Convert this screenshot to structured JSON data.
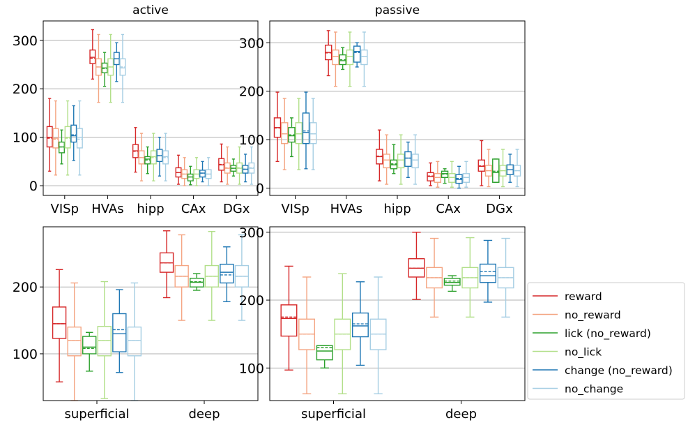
{
  "figure": {
    "legend": [
      {
        "key": "reward",
        "label": "reward",
        "color": "#d62728"
      },
      {
        "key": "no_reward",
        "label": "no_reward",
        "color": "#f4a582"
      },
      {
        "key": "lick",
        "label": "lick (no_reward)",
        "color": "#2ca02c"
      },
      {
        "key": "no_lick",
        "label": "no_lick",
        "color": "#b2df8a"
      },
      {
        "key": "change",
        "label": "change (no_reward)",
        "color": "#1f77b4"
      },
      {
        "key": "no_change",
        "label": "no_change",
        "color": "#a6cee3"
      }
    ]
  },
  "chart_data": [
    {
      "type": "box",
      "title": "active",
      "categories": [
        "VISp",
        "HVAs",
        "hipp",
        "CAx",
        "DGx"
      ],
      "ylim": [
        -20,
        340
      ],
      "yticks": [
        0,
        100,
        200,
        300
      ],
      "grid": "y",
      "series": [
        {
          "name": "reward",
          "boxes": [
            {
              "whislo": 30,
              "q1": 80,
              "med": 100,
              "mean": 98,
              "q3": 122,
              "whishi": 180
            },
            {
              "whislo": 220,
              "q1": 252,
              "med": 265,
              "mean": 263,
              "q3": 280,
              "whishi": 322
            },
            {
              "whislo": 28,
              "q1": 58,
              "med": 72,
              "mean": 71,
              "q3": 85,
              "whishi": 120
            },
            {
              "whislo": 3,
              "q1": 18,
              "med": 27,
              "mean": 27,
              "q3": 37,
              "whishi": 63
            },
            {
              "whislo": 8,
              "q1": 32,
              "med": 43,
              "mean": 44,
              "q3": 56,
              "whishi": 86
            }
          ]
        },
        {
          "name": "no_reward",
          "boxes": [
            {
              "whislo": 22,
              "q1": 78,
              "med": 98,
              "mean": 96,
              "q3": 118,
              "whishi": 175
            },
            {
              "whislo": 172,
              "q1": 228,
              "med": 245,
              "mean": 245,
              "q3": 262,
              "whishi": 312
            },
            {
              "whislo": 10,
              "q1": 45,
              "med": 58,
              "mean": 58,
              "q3": 72,
              "whishi": 108
            },
            {
              "whislo": 0,
              "q1": 15,
              "med": 24,
              "mean": 24,
              "q3": 33,
              "whishi": 58
            },
            {
              "whislo": 3,
              "q1": 26,
              "med": 36,
              "mean": 37,
              "q3": 47,
              "whishi": 80
            }
          ]
        },
        {
          "name": "lick (no_reward)",
          "boxes": [
            {
              "whislo": 45,
              "q1": 68,
              "med": 80,
              "mean": 80,
              "q3": 90,
              "whishi": 115
            },
            {
              "whislo": 205,
              "q1": 233,
              "med": 243,
              "mean": 242,
              "q3": 253,
              "whishi": 275
            },
            {
              "whislo": 25,
              "q1": 45,
              "med": 55,
              "mean": 53,
              "q3": 60,
              "whishi": 80
            },
            {
              "whislo": 2,
              "q1": 10,
              "med": 18,
              "mean": 18,
              "q3": 24,
              "whishi": 40
            },
            {
              "whislo": 20,
              "q1": 30,
              "med": 36,
              "mean": 36,
              "q3": 42,
              "whishi": 55
            }
          ]
        },
        {
          "name": "no_lick",
          "boxes": [
            {
              "whislo": 22,
              "q1": 78,
              "med": 100,
              "mean": 98,
              "q3": 122,
              "whishi": 175
            },
            {
              "whislo": 172,
              "q1": 228,
              "med": 245,
              "mean": 245,
              "q3": 262,
              "whishi": 312
            },
            {
              "whislo": 10,
              "q1": 45,
              "med": 60,
              "mean": 58,
              "q3": 72,
              "whishi": 108
            },
            {
              "whislo": 0,
              "q1": 15,
              "med": 24,
              "mean": 24,
              "q3": 33,
              "whishi": 58
            },
            {
              "whislo": 3,
              "q1": 26,
              "med": 36,
              "mean": 37,
              "q3": 47,
              "whishi": 80
            }
          ]
        },
        {
          "name": "change (no_reward)",
          "boxes": [
            {
              "whislo": 52,
              "q1": 90,
              "med": 103,
              "mean": 105,
              "q3": 125,
              "whishi": 165
            },
            {
              "whislo": 215,
              "q1": 250,
              "med": 262,
              "mean": 262,
              "q3": 275,
              "whishi": 295
            },
            {
              "whislo": 20,
              "q1": 50,
              "med": 62,
              "mean": 62,
              "q3": 75,
              "whishi": 100
            },
            {
              "whislo": 8,
              "q1": 18,
              "med": 26,
              "mean": 26,
              "q3": 32,
              "whishi": 50
            },
            {
              "whislo": 8,
              "q1": 26,
              "med": 34,
              "mean": 34,
              "q3": 42,
              "whishi": 65
            }
          ]
        },
        {
          "name": "no_change",
          "boxes": [
            {
              "whislo": 22,
              "q1": 78,
              "med": 100,
              "mean": 96,
              "q3": 118,
              "whishi": 175
            },
            {
              "whislo": 172,
              "q1": 228,
              "med": 243,
              "mean": 245,
              "q3": 262,
              "whishi": 312
            },
            {
              "whislo": 10,
              "q1": 45,
              "med": 60,
              "mean": 58,
              "q3": 72,
              "whishi": 108
            },
            {
              "whislo": 0,
              "q1": 15,
              "med": 24,
              "mean": 24,
              "q3": 33,
              "whishi": 58
            },
            {
              "whislo": 3,
              "q1": 26,
              "med": 36,
              "mean": 37,
              "q3": 47,
              "whishi": 80
            }
          ]
        }
      ]
    },
    {
      "type": "box",
      "title": "passive",
      "categories": [
        "VISp",
        "HVAs",
        "hipp",
        "CAx",
        "DGx"
      ],
      "ylim": [
        -15,
        345
      ],
      "yticks": [
        0,
        100,
        200,
        300
      ],
      "grid": "y",
      "series": [
        {
          "name": "reward",
          "boxes": [
            {
              "whislo": 55,
              "q1": 105,
              "med": 125,
              "mean": 124,
              "q3": 145,
              "whishi": 198
            },
            {
              "whislo": 232,
              "q1": 265,
              "med": 280,
              "mean": 279,
              "q3": 295,
              "whishi": 325
            },
            {
              "whislo": 15,
              "q1": 50,
              "med": 65,
              "mean": 66,
              "q3": 80,
              "whishi": 120
            },
            {
              "whislo": 5,
              "q1": 15,
              "med": 24,
              "mean": 25,
              "q3": 32,
              "whishi": 52
            },
            {
              "whislo": 5,
              "q1": 35,
              "med": 45,
              "mean": 46,
              "q3": 58,
              "whishi": 98
            }
          ]
        },
        {
          "name": "no_reward",
          "boxes": [
            {
              "whislo": 38,
              "q1": 92,
              "med": 112,
              "mean": 112,
              "q3": 135,
              "whishi": 185
            },
            {
              "whislo": 210,
              "q1": 255,
              "med": 272,
              "mean": 272,
              "q3": 285,
              "whishi": 322
            },
            {
              "whislo": 8,
              "q1": 42,
              "med": 58,
              "mean": 58,
              "q3": 70,
              "whishi": 110
            },
            {
              "whislo": 2,
              "q1": 12,
              "med": 22,
              "mean": 22,
              "q3": 30,
              "whishi": 55
            },
            {
              "whislo": 3,
              "q1": 25,
              "med": 36,
              "mean": 36,
              "q3": 47,
              "whishi": 80
            }
          ]
        },
        {
          "name": "lick (no_reward)",
          "boxes": [
            {
              "whislo": 65,
              "q1": 95,
              "med": 108,
              "mean": 110,
              "q3": 125,
              "whishi": 145
            },
            {
              "whislo": 245,
              "q1": 255,
              "med": 263,
              "mean": 265,
              "q3": 275,
              "whishi": 290
            },
            {
              "whislo": 30,
              "q1": 40,
              "med": 48,
              "mean": 50,
              "q3": 58,
              "whishi": 90
            },
            {
              "whislo": 10,
              "q1": 22,
              "med": 30,
              "mean": 29,
              "q3": 35,
              "whishi": 40
            },
            {
              "whislo": 12,
              "q1": 12,
              "med": 32,
              "mean": 35,
              "q3": 60,
              "whishi": 60
            }
          ]
        },
        {
          "name": "no_lick",
          "boxes": [
            {
              "whislo": 38,
              "q1": 92,
              "med": 112,
              "mean": 112,
              "q3": 135,
              "whishi": 185
            },
            {
              "whislo": 210,
              "q1": 255,
              "med": 272,
              "mean": 272,
              "q3": 285,
              "whishi": 322
            },
            {
              "whislo": 8,
              "q1": 42,
              "med": 58,
              "mean": 58,
              "q3": 70,
              "whishi": 110
            },
            {
              "whislo": 2,
              "q1": 12,
              "med": 22,
              "mean": 22,
              "q3": 30,
              "whishi": 55
            },
            {
              "whislo": 3,
              "q1": 25,
              "med": 36,
              "mean": 36,
              "q3": 47,
              "whishi": 80
            }
          ]
        },
        {
          "name": "change (no_reward)",
          "boxes": [
            {
              "whislo": 40,
              "q1": 92,
              "med": 115,
              "mean": 118,
              "q3": 155,
              "whishi": 198
            },
            {
              "whislo": 250,
              "q1": 260,
              "med": 282,
              "mean": 280,
              "q3": 293,
              "whishi": 300
            },
            {
              "whislo": 22,
              "q1": 45,
              "med": 62,
              "mean": 62,
              "q3": 75,
              "whishi": 95
            },
            {
              "whislo": 0,
              "q1": 10,
              "med": 18,
              "mean": 20,
              "q3": 28,
              "whishi": 45
            },
            {
              "whislo": 12,
              "q1": 28,
              "med": 38,
              "mean": 38,
              "q3": 48,
              "whishi": 70
            }
          ]
        },
        {
          "name": "no_change",
          "boxes": [
            {
              "whislo": 38,
              "q1": 92,
              "med": 112,
              "mean": 112,
              "q3": 135,
              "whishi": 185
            },
            {
              "whislo": 210,
              "q1": 255,
              "med": 272,
              "mean": 272,
              "q3": 285,
              "whishi": 322
            },
            {
              "whislo": 8,
              "q1": 42,
              "med": 58,
              "mean": 58,
              "q3": 70,
              "whishi": 110
            },
            {
              "whislo": 2,
              "q1": 12,
              "med": 22,
              "mean": 22,
              "q3": 30,
              "whishi": 55
            },
            {
              "whislo": 3,
              "q1": 25,
              "med": 36,
              "mean": 36,
              "q3": 47,
              "whishi": 80
            }
          ]
        }
      ]
    },
    {
      "type": "box",
      "title": "",
      "categories": [
        "superficial",
        "deep"
      ],
      "ylim": [
        30,
        290
      ],
      "yticks": [
        100,
        200
      ],
      "grid": "y",
      "series": [
        {
          "name": "reward",
          "boxes": [
            {
              "whislo": 58,
              "q1": 123,
              "med": 145,
              "mean": 145,
              "q3": 170,
              "whishi": 226
            },
            {
              "whislo": 184,
              "q1": 222,
              "med": 236,
              "mean": 236,
              "q3": 251,
              "whishi": 284
            }
          ]
        },
        {
          "name": "no_reward",
          "boxes": [
            {
              "whislo": 30,
              "q1": 97,
              "med": 120,
              "mean": 120,
              "q3": 140,
              "whishi": 206
            },
            {
              "whislo": 150,
              "q1": 200,
              "med": 216,
              "mean": 216,
              "q3": 232,
              "whishi": 278
            }
          ]
        },
        {
          "name": "lick (no_reward)",
          "boxes": [
            {
              "whislo": 74,
              "q1": 100,
              "med": 110,
              "mean": 108,
              "q3": 126,
              "whishi": 132
            },
            {
              "whislo": 195,
              "q1": 200,
              "med": 207,
              "mean": 208,
              "q3": 213,
              "whishi": 220
            }
          ]
        },
        {
          "name": "no_lick",
          "boxes": [
            {
              "whislo": 33,
              "q1": 97,
              "med": 120,
              "mean": 120,
              "q3": 141,
              "whishi": 208
            },
            {
              "whislo": 150,
              "q1": 200,
              "med": 216,
              "mean": 216,
              "q3": 232,
              "whishi": 283
            }
          ]
        },
        {
          "name": "change (no_reward)",
          "boxes": [
            {
              "whislo": 72,
              "q1": 103,
              "med": 130,
              "mean": 136,
              "q3": 160,
              "whishi": 196
            },
            {
              "whislo": 178,
              "q1": 206,
              "med": 222,
              "mean": 218,
              "q3": 234,
              "whishi": 260
            }
          ]
        },
        {
          "name": "no_change",
          "boxes": [
            {
              "whislo": 30,
              "q1": 97,
              "med": 120,
              "mean": 120,
              "q3": 140,
              "whishi": 206
            },
            {
              "whislo": 150,
              "q1": 200,
              "med": 216,
              "mean": 216,
              "q3": 232,
              "whishi": 278
            }
          ]
        }
      ]
    },
    {
      "type": "box",
      "title": "",
      "categories": [
        "superficial",
        "deep"
      ],
      "ylim": [
        52,
        308
      ],
      "yticks": [
        100,
        200,
        300
      ],
      "grid": "y",
      "series": [
        {
          "name": "reward",
          "boxes": [
            {
              "whislo": 97,
              "q1": 147,
              "med": 173,
              "mean": 175,
              "q3": 193,
              "whishi": 250
            },
            {
              "whislo": 201,
              "q1": 234,
              "med": 247,
              "mean": 247,
              "q3": 261,
              "whishi": 300
            }
          ]
        },
        {
          "name": "no_reward",
          "boxes": [
            {
              "whislo": 62,
              "q1": 127,
              "med": 150,
              "mean": 150,
              "q3": 172,
              "whishi": 234
            },
            {
              "whislo": 175,
              "q1": 218,
              "med": 233,
              "mean": 233,
              "q3": 248,
              "whishi": 291
            }
          ]
        },
        {
          "name": "lick (no_reward)",
          "boxes": [
            {
              "whislo": 100,
              "q1": 112,
              "med": 125,
              "mean": 130,
              "q3": 133,
              "whishi": 133
            },
            {
              "whislo": 213,
              "q1": 222,
              "med": 226,
              "mean": 228,
              "q3": 232,
              "whishi": 236
            }
          ]
        },
        {
          "name": "no_lick",
          "boxes": [
            {
              "whislo": 62,
              "q1": 127,
              "med": 150,
              "mean": 150,
              "q3": 172,
              "whishi": 239
            },
            {
              "whislo": 175,
              "q1": 218,
              "med": 233,
              "mean": 233,
              "q3": 248,
              "whishi": 292
            }
          ]
        },
        {
          "name": "change (no_reward)",
          "boxes": [
            {
              "whislo": 104,
              "q1": 146,
              "med": 162,
              "mean": 165,
              "q3": 181,
              "whishi": 227
            },
            {
              "whislo": 197,
              "q1": 226,
              "med": 236,
              "mean": 242,
              "q3": 253,
              "whishi": 288
            }
          ]
        },
        {
          "name": "no_change",
          "boxes": [
            {
              "whislo": 62,
              "q1": 127,
              "med": 150,
              "mean": 150,
              "q3": 172,
              "whishi": 234
            },
            {
              "whislo": 175,
              "q1": 218,
              "med": 233,
              "mean": 233,
              "q3": 248,
              "whishi": 291
            }
          ]
        }
      ]
    }
  ]
}
